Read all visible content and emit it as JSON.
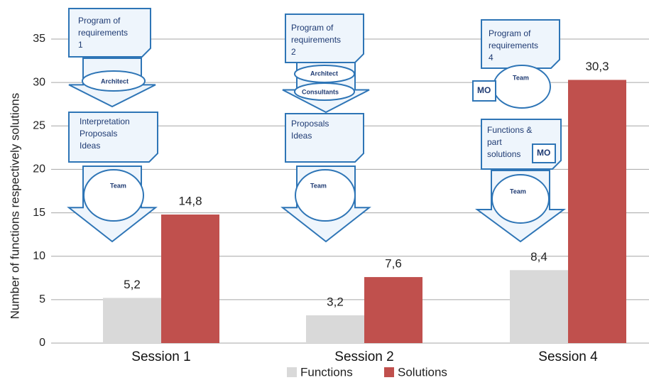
{
  "chart_data": {
    "type": "bar",
    "y_label": "Number of functions respectively solutions",
    "categories": [
      "Session 1",
      "Session 2",
      "Session 4"
    ],
    "series": [
      {
        "name": "Functions",
        "color": "#d9d9d9",
        "values": [
          5.2,
          3.2,
          8.4
        ],
        "value_labels": [
          "5,2",
          "3,2",
          "8,4"
        ]
      },
      {
        "name": "Solutions",
        "color": "#c0504d",
        "values": [
          14.8,
          7.6,
          30.3
        ],
        "value_labels": [
          "14,8",
          "7,6",
          "30,3"
        ]
      }
    ],
    "ylim": [
      0,
      35
    ],
    "yticks": [
      0,
      5,
      10,
      15,
      20,
      25,
      30,
      35
    ],
    "grid": true,
    "legend": "bottom",
    "annotations": [
      [
        "Program of",
        "requirements",
        "1"
      ],
      [
        "Architect"
      ],
      [
        "Interpretation",
        "Proposals",
        "Ideas"
      ],
      [
        "Team"
      ],
      [
        "Program of",
        "requirements",
        "2"
      ],
      [
        "Architect"
      ],
      [
        "Consultants"
      ],
      [
        "Proposals",
        "Ideas"
      ],
      [
        "Team"
      ],
      [
        "Program of",
        "requirements",
        "4"
      ],
      [
        "Team"
      ],
      [
        "MO"
      ],
      [
        "Functions &",
        "part",
        "solutions"
      ],
      [
        "MO"
      ],
      [
        "Team"
      ]
    ]
  }
}
